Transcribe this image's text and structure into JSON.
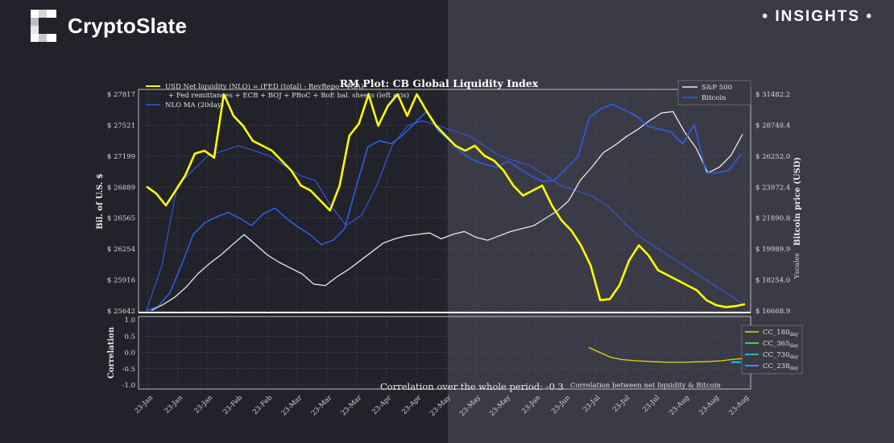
{
  "brand": {
    "name": "CryptoSlate",
    "section": "INSIGHTS"
  },
  "colors": {
    "nlo": "#ffff00",
    "nlo_ma": "#3355dd",
    "sp500": "#e8e8e8",
    "bitcoin": "#2b5fe6",
    "cc180": "#e0d800",
    "cc365": "#44ff44",
    "cc730": "#22dddd",
    "cc238": "#00ccff"
  },
  "chart_data": [
    {
      "type": "line",
      "title": "RM Plot: CB Global Liquidity Index",
      "ylabel_left": "Bil. of U.S. $",
      "ylabel_right": "Bitcoin price (USD)",
      "ylabel_right_secondary": "Yscales",
      "y_left_ticks": [
        "$ 27817",
        "$ 27521",
        "$ 27199",
        "$ 26889",
        "$ 26565",
        "$ 26254",
        "$ 25916",
        "$ 25642"
      ],
      "y_right_ticks": [
        "$ 31482.2",
        "$ 28748.4",
        "$ 26252.0",
        "$ 23972.4",
        "$ 21890.8",
        "$ 19989.9",
        "$ 18254.0",
        "$ 16668.9"
      ],
      "x_ticks": [
        "23-Jan",
        "23-Jan",
        "23-Jan",
        "23-Feb",
        "23-Feb",
        "23-Mar",
        "23-Mar",
        "23-Mar",
        "23-Apr",
        "23-Apr",
        "23-May",
        "23-May",
        "23-May",
        "23-Jun",
        "23-Jun",
        "23-Jul",
        "23-Jul",
        "23-Jul",
        "23-Aug",
        "23-Aug",
        "23-Aug"
      ],
      "legend_left": [
        {
          "label": "USD Net liquidity (NLO) = (FED (total) - RevRepo - TGA)",
          "label2": "+ Fed remittances + ECB + BOJ + PBoC + BoE bal. sheets (left axis)",
          "color": "#ffff00"
        },
        {
          "label": "NLO MA (20day)",
          "color": "#3355dd"
        }
      ],
      "legend_right": [
        {
          "label": "S&P 500",
          "color": "#e8e8e8"
        },
        {
          "label": "Bitcoin",
          "color": "#2b5fe6"
        }
      ],
      "series": [
        {
          "name": "USD Net liquidity (NLO)",
          "axis": "left",
          "values": [
            26890,
            26820,
            26700,
            26850,
            27000,
            27220,
            27250,
            27180,
            27817,
            27600,
            27500,
            27350,
            27300,
            27250,
            27150,
            27050,
            26900,
            26850,
            26750,
            26650,
            26900,
            27400,
            27520,
            27817,
            27500,
            27700,
            27817,
            27600,
            27817,
            27650,
            27500,
            27400,
            27300,
            27250,
            27300,
            27200,
            27150,
            27050,
            26900,
            26800,
            26850,
            26900,
            26700,
            26550,
            26450,
            26300,
            26100,
            25750,
            25760,
            25900,
            26150,
            26300,
            26200,
            26050,
            26000,
            25950,
            25900,
            25850,
            25750,
            25700,
            25680,
            25690,
            25710
          ]
        },
        {
          "name": "NLO MA (20day)",
          "axis": "left",
          "values": [
            25650,
            26100,
            26900,
            27050,
            27200,
            27250,
            27300,
            27250,
            27200,
            27100,
            27000,
            26950,
            26700,
            26500,
            26600,
            26900,
            27300,
            27500,
            27550,
            27500,
            27450,
            27400,
            27300,
            27200,
            27150,
            27100,
            27000,
            26900,
            26850,
            26800,
            26700,
            26550,
            26400,
            26300,
            26200,
            26100,
            26000,
            25900,
            25800,
            25700
          ]
        },
        {
          "name": "S&P 500",
          "axis": "right",
          "values": [
            16700,
            17100,
            17600,
            18300,
            19200,
            19900,
            20500,
            21200,
            21890,
            21200,
            20500,
            20000,
            19600,
            19200,
            18500,
            18400,
            19000,
            19500,
            20100,
            20700,
            21300,
            21600,
            21800,
            21900,
            22000,
            21600,
            21900,
            22100,
            21700,
            21500,
            21800,
            22100,
            22300,
            22500,
            23000,
            23500,
            24200,
            25600,
            26500,
            27500,
            28000,
            28600,
            29100,
            29700,
            30200,
            30300,
            28900,
            27800,
            26100,
            26500,
            27300,
            28748
          ]
        },
        {
          "name": "Bitcoin",
          "axis": "right",
          "values": [
            16670,
            17000,
            17900,
            19800,
            21900,
            22700,
            23100,
            23400,
            23000,
            22500,
            23300,
            23700,
            23000,
            22400,
            21900,
            21200,
            21500,
            22300,
            25200,
            27900,
            28300,
            28100,
            28700,
            29500,
            30300,
            29000,
            28300,
            27500,
            27000,
            26700,
            26500,
            26900,
            26400,
            25900,
            25500,
            25600,
            26400,
            27200,
            29900,
            30500,
            30800,
            30400,
            30000,
            29300,
            29100,
            28900,
            28100,
            29400,
            26100,
            26100,
            26300,
            27400
          ]
        }
      ]
    },
    {
      "type": "line",
      "ylabel": "Correlation",
      "ylim": [
        -1.0,
        1.0
      ],
      "y_ticks": [
        "1.0",
        "0.5",
        "0.0",
        "-0.5",
        "-1.0"
      ],
      "annotations": [
        "Correlation over the whole period: -0.3",
        "Correlation between net liquidity & Bitcoin"
      ],
      "legend": [
        {
          "label": "CC_180",
          "sub": "day",
          "color": "#e0d800"
        },
        {
          "label": "CC_365",
          "sub": "day",
          "color": "#44ff44"
        },
        {
          "label": "CC_730",
          "sub": "day",
          "color": "#22dddd"
        },
        {
          "label": "CC_238",
          "sub": "day",
          "color": "#00ccff"
        }
      ],
      "series": [
        {
          "name": "CC_180day",
          "values": [
            0.15,
            0.0,
            -0.15,
            -0.22,
            -0.25,
            -0.27,
            -0.29,
            -0.3,
            -0.3,
            -0.3,
            -0.29,
            -0.28,
            -0.26,
            -0.22,
            -0.19
          ]
        },
        {
          "name": "CC_238day",
          "values": [
            -0.3,
            -0.3
          ]
        }
      ]
    }
  ]
}
